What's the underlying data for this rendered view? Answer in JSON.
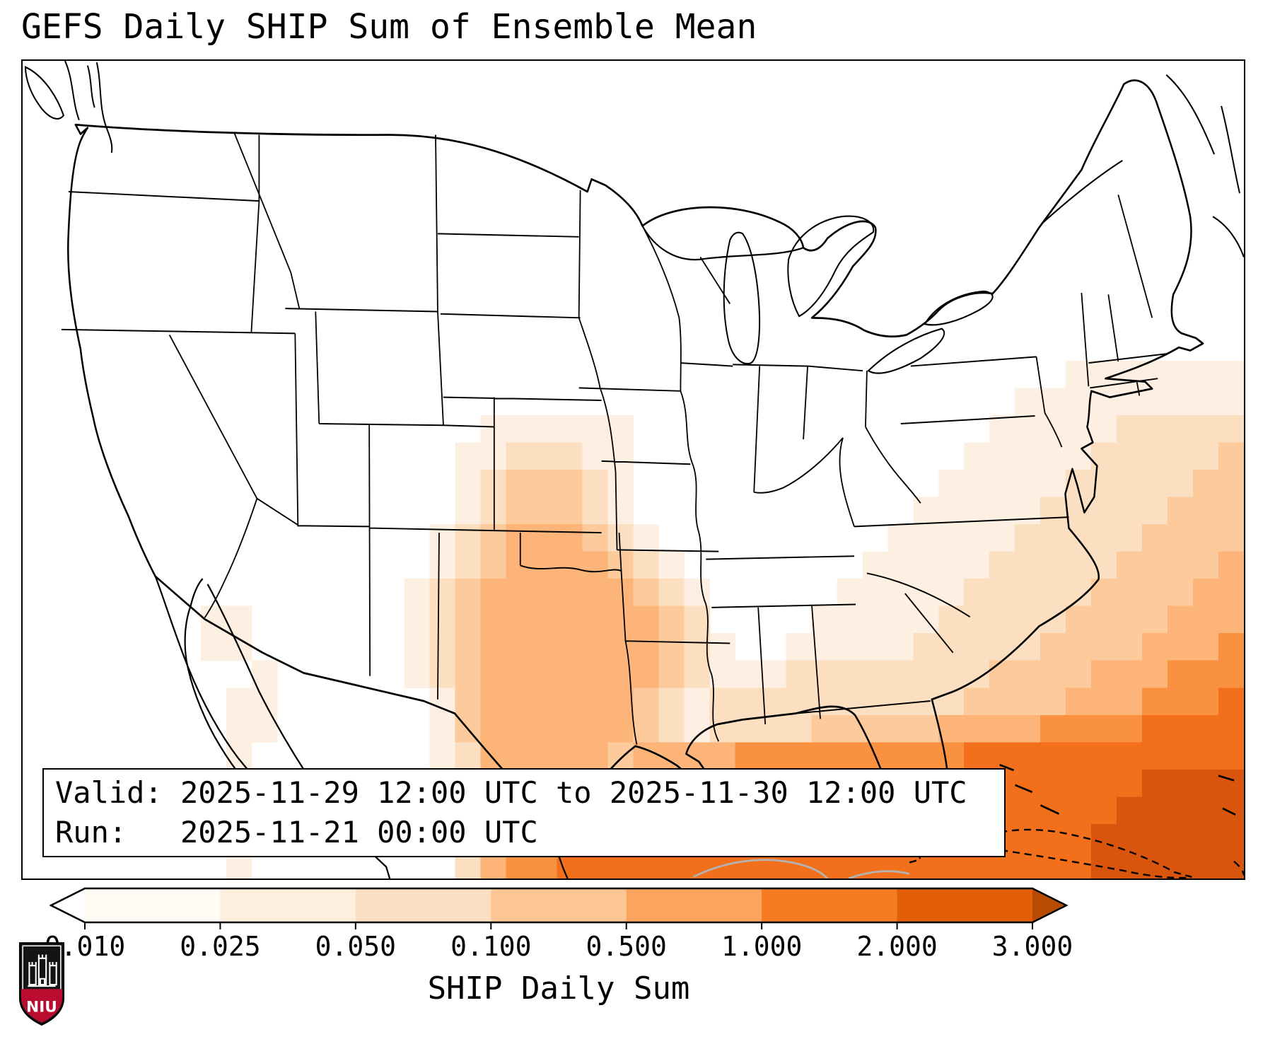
{
  "title": "GEFS Daily SHIP Sum of Ensemble Mean",
  "info_box": {
    "valid_line": "Valid: 2025-11-29 12:00 UTC to 2025-11-30 12:00 UTC",
    "run_line": "Run:   2025-11-21 00:00 UTC"
  },
  "colorbar": {
    "label": "SHIP Daily Sum",
    "tick_labels": [
      "0.010",
      "0.025",
      "0.050",
      "0.100",
      "0.500",
      "1.000",
      "2.000",
      "3.000"
    ],
    "segment_colors": [
      "#fffaf4",
      "#fdeede",
      "#fcdfc2",
      "#fcc694",
      "#fba45c",
      "#f67c24",
      "#e25e08"
    ],
    "under_arrow_color": "#ffffff",
    "over_arrow_color": "#b94a03"
  },
  "chart_data": {
    "type": "heatmap",
    "title": "GEFS Daily SHIP Sum of Ensemble Mean",
    "colorbar_ticks": [
      0.01,
      0.025,
      0.05,
      0.1,
      0.5,
      1.0,
      2.0,
      3.0
    ],
    "colorbar_label": "SHIP Daily Sum",
    "valid": "2025-11-29 12:00 UTC to 2025-11-30 12:00 UTC",
    "run": "2025-11-21 00:00 UTC",
    "note": "Gridded SHIP daily sum field encoded in map.heat_grid; level index 1-7 maps to increasing SHIP values per map.heat_palette"
  },
  "map": {
    "heat_palette": {
      "1": "#fdf0e2",
      "2": "#fbdfc0",
      "3": "#fcca9b",
      "4": "#fcb478",
      "5": "#fa9140",
      "6": "#f2701b",
      "7": "#d9550d"
    },
    "heat_grid": [
      "000000000000000000000000000000000000000000000000",
      "000000000000000000000000000000000000000000000000",
      "000000000000000000000000000000000000000000000000",
      "000000000000000000000000000000000000000000000000",
      "000000000000000000000000000000000000000000000000",
      "000000000000000000000000000000000000000000000000",
      "000000000000000000000000000000000000000000000000",
      "000000000000000000000000000000000000000000000000",
      "000000000000000000000000000000000000000000000000",
      "000000000000000000000000000000000000000000000000",
      "000000000000000000000000000000000000000000000000",
      "000000000000000000000000000000000000000001111111",
      "000000000000000000000000000000000000000111111111",
      "000000000000000000111111000000000000001111122222",
      "000000000000000001122211000000000000011111222223",
      "000000000000000001233321000000000000111112222233",
      "000000000000000001233321000000000001111122222333",
      "000000000000000012344432100000000011111222223333",
      "000000000000000012344443210000000111112222233334",
      "000000000000000123444444321000001111122222333344",
      "000000011000000123444444432000011111222223333444",
      "000000011000000123444444432100111112222233334445",
      "000000000100000123444444432111222222223333444555",
      "000000001100000013444444321222222222233334445556",
      "000000001100000013444444321222233333444455556666",
      "000000001000000012444443444455555555566666666666",
      "000000001000000012344445555555555555666666667777",
      "000000001000000000444665555555555555666666677777",
      "000000001000000002455665555555555555666666777777",
      "000000001000000002455666666666666666666666777777"
    ]
  },
  "logo": {
    "text": "NIU",
    "red": "#ba0c2f",
    "black": "#141414"
  }
}
